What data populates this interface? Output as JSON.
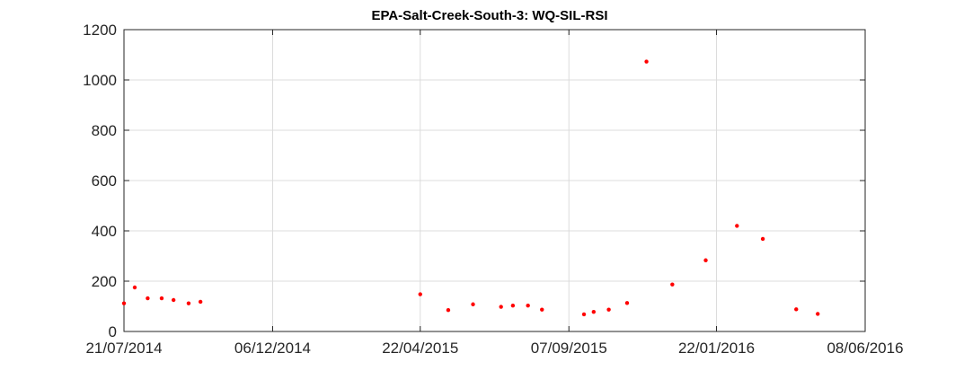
{
  "chart_data": {
    "type": "scatter",
    "title": "EPA-Salt-Creek-South-3: WQ-SIL-RSI",
    "xlabel": "",
    "ylabel": "",
    "x_type": "date",
    "xlim": [
      "2014-07-21",
      "2016-06-08"
    ],
    "ylim": [
      0,
      1200
    ],
    "y_ticks": [
      0,
      200,
      400,
      600,
      800,
      1000,
      1200
    ],
    "x_ticks": [
      "2014-07-21",
      "2014-12-06",
      "2015-04-22",
      "2015-09-07",
      "2016-01-22",
      "2016-06-08"
    ],
    "x_tick_labels": [
      "21/07/2014",
      "06/12/2014",
      "22/04/2015",
      "07/09/2015",
      "22/01/2016",
      "08/06/2016"
    ],
    "grid": true,
    "marker_color": "#ff0000",
    "series": [
      {
        "points": [
          {
            "x": "2014-07-21",
            "y": 112
          },
          {
            "x": "2014-07-31",
            "y": 175
          },
          {
            "x": "2014-08-12",
            "y": 132
          },
          {
            "x": "2014-08-25",
            "y": 132
          },
          {
            "x": "2014-09-05",
            "y": 125
          },
          {
            "x": "2014-09-19",
            "y": 112
          },
          {
            "x": "2014-09-30",
            "y": 118
          },
          {
            "x": "2015-04-22",
            "y": 148
          },
          {
            "x": "2015-05-18",
            "y": 85
          },
          {
            "x": "2015-06-10",
            "y": 108
          },
          {
            "x": "2015-07-06",
            "y": 98
          },
          {
            "x": "2015-07-17",
            "y": 103
          },
          {
            "x": "2015-07-31",
            "y": 103
          },
          {
            "x": "2015-08-13",
            "y": 87
          },
          {
            "x": "2015-09-21",
            "y": 68
          },
          {
            "x": "2015-09-30",
            "y": 78
          },
          {
            "x": "2015-10-14",
            "y": 87
          },
          {
            "x": "2015-10-31",
            "y": 113
          },
          {
            "x": "2015-11-18",
            "y": 1073
          },
          {
            "x": "2015-12-12",
            "y": 187
          },
          {
            "x": "2016-01-12",
            "y": 283
          },
          {
            "x": "2016-02-10",
            "y": 420
          },
          {
            "x": "2016-03-05",
            "y": 368
          },
          {
            "x": "2016-04-05",
            "y": 88
          },
          {
            "x": "2016-04-25",
            "y": 70
          }
        ]
      }
    ]
  }
}
